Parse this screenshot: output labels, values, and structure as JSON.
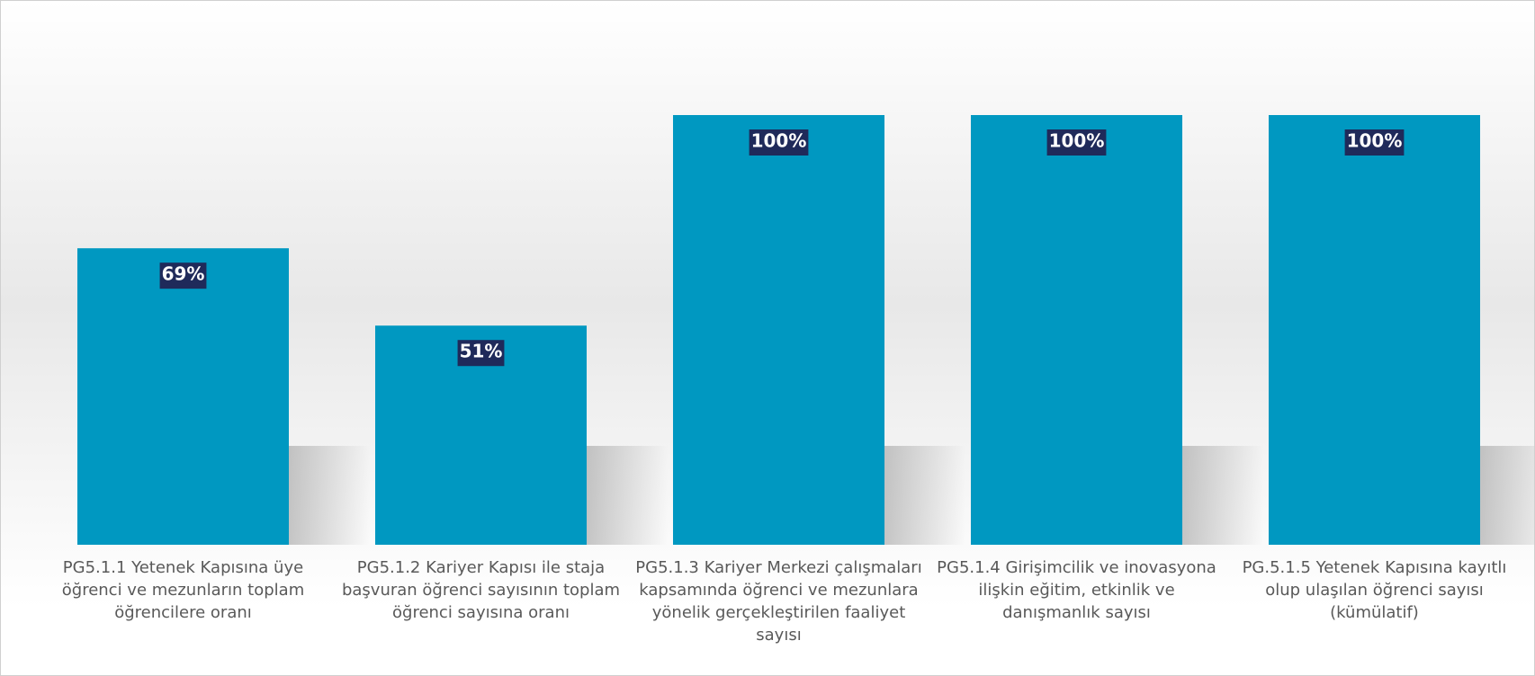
{
  "chart_data": {
    "type": "bar",
    "categories": [
      "PG5.1.1 Yetenek Kapısına üye öğrenci ve mezunların toplam öğrencilere oranı",
      "PG5.1.2 Kariyer Kapısı ile staja başvuran öğrenci sayısının toplam öğrenci sayısına oranı",
      "PG5.1.3 Kariyer Merkezi çalışmaları kapsamında öğrenci ve mezunlara yönelik gerçekleştirilen faaliyet sayısı",
      "PG5.1.4 Girişimcilik ve inovasyona ilişkin eğitim, etkinlik ve danışmanlık sayısı",
      "PG.5.1.5 Yetenek Kapısına kayıtlı olup ulaşılan öğrenci sayısı (kümülatif)"
    ],
    "values": [
      69,
      51,
      100,
      100,
      100
    ],
    "value_labels": [
      "69%",
      "51%",
      "100%",
      "100%",
      "100%"
    ],
    "color": "#0098c1",
    "ylim": [
      0,
      100
    ]
  }
}
